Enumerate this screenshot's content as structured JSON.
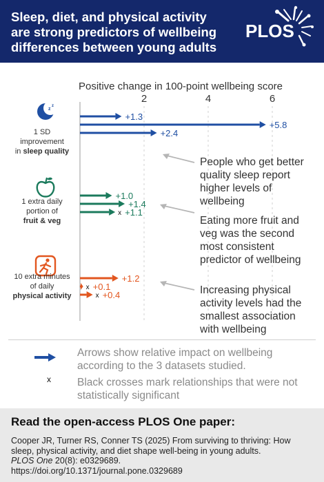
{
  "header": {
    "title_lines": [
      "Sleep, diet, and physical activity",
      "are strong predictors of wellbeing",
      "differences between young adults"
    ],
    "logo_text": "PLOS"
  },
  "colors": {
    "banner": "#14286b",
    "sleep": "#1f4fa3",
    "diet": "#1b7a5c",
    "activity": "#e2561f",
    "annotation_text": "#333333",
    "muted_text": "#8a8a8a"
  },
  "chart_data": {
    "type": "bar",
    "title": "Positive change in 100-point wellbeing score",
    "xlim": [
      0,
      6.7
    ],
    "x_ticks": [
      2,
      4,
      6
    ],
    "groups": [
      {
        "key": "sleep",
        "icon": "moon-icon",
        "label_lines": [
          "1 SD",
          "improvement",
          "in "
        ],
        "label_bold": "sleep quality",
        "values": [
          1.3,
          5.8,
          2.4
        ],
        "value_labels": [
          "+1.3",
          "+5.8",
          "+2.4"
        ],
        "significant": [
          true,
          true,
          true
        ],
        "annotation_lines": [
          "People who get better",
          "quality sleep report",
          "higher levels of",
          "wellbeing"
        ]
      },
      {
        "key": "diet",
        "icon": "apple-icon",
        "label_lines": [
          "1 extra daily",
          "portion of"
        ],
        "label_bold": "fruit & veg",
        "values": [
          1.0,
          1.4,
          1.1
        ],
        "value_labels": [
          "+1.0",
          "+1.4",
          "+1.1"
        ],
        "significant": [
          true,
          true,
          false
        ],
        "annotation_lines": [
          "Eating more fruit and",
          "veg was the second",
          "most consistent",
          "predictor of wellbeing"
        ]
      },
      {
        "key": "activity",
        "icon": "runner-icon",
        "label_lines": [
          "10 extra minutes",
          "of daily"
        ],
        "label_bold": "physical activity",
        "values": [
          1.2,
          0.1,
          0.4
        ],
        "value_labels": [
          "+1.2",
          "+0.1",
          "+0.4"
        ],
        "significant": [
          true,
          false,
          false
        ],
        "annotation_lines": [
          "Increasing physical",
          "activity levels had the",
          "smallest association",
          "with wellbeing"
        ]
      }
    ]
  },
  "legend": {
    "arrow_text": "Arrows show relative impact on wellbeing according to the 3 datasets studied.",
    "cross_symbol": "x",
    "cross_text": "Black crosses mark relationships that were not statistically significant"
  },
  "footer": {
    "heading": "Read the open-access PLOS One paper:",
    "citation_line1": "Cooper JR, Turner RS, Conner TS (2025) From surviving to thriving: How sleep, physical activity, and diet shape well-being in young adults.",
    "journal": "PLOS One",
    "volume": " 20(8): e0329689.",
    "doi": "https://doi.org/10.1371/journal.pone.0329689"
  }
}
